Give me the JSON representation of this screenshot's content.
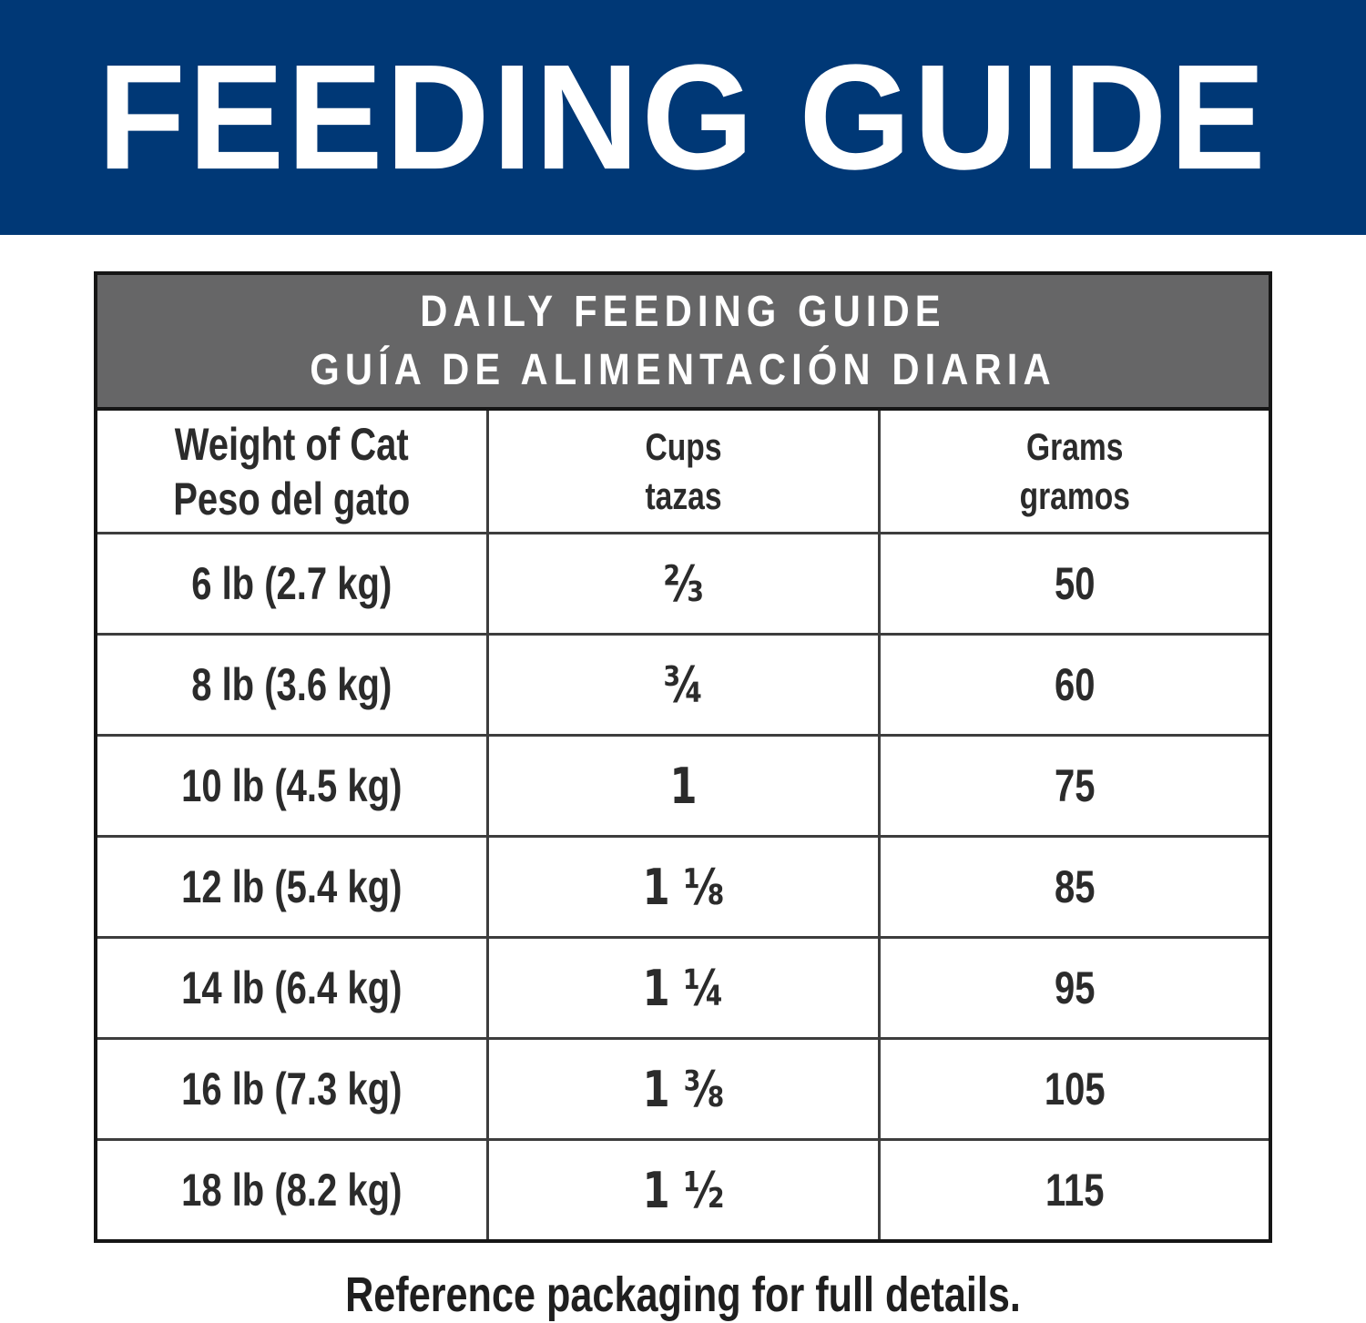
{
  "banner": {
    "title": "FEEDING GUIDE",
    "bg_color": "#003876",
    "text_color": "#ffffff"
  },
  "chart_data": {
    "type": "table",
    "title": "DAILY FEEDING GUIDE",
    "title_es": "GUÍA DE ALIMENTACIÓN DIARIA",
    "header_bg": "#666667",
    "border_color": "#161616",
    "columns": [
      {
        "en": "Weight of Cat",
        "es": "Peso del gato"
      },
      {
        "en": "Cups",
        "es": "tazas"
      },
      {
        "en": "Grams",
        "es": "gramos"
      }
    ],
    "rows": [
      {
        "weight": "6 lb (2.7 kg)",
        "cups": "⅔",
        "grams": "50"
      },
      {
        "weight": "8 lb (3.6 kg)",
        "cups": "¾",
        "grams": "60"
      },
      {
        "weight": "10 lb (4.5 kg)",
        "cups": "1",
        "grams": "75"
      },
      {
        "weight": "12 lb (5.4 kg)",
        "cups": "1 ⅛",
        "grams": "85"
      },
      {
        "weight": "14 lb (6.4 kg)",
        "cups": "1 ¼",
        "grams": "95"
      },
      {
        "weight": "16 lb (7.3 kg)",
        "cups": "1 ⅜",
        "grams": "105"
      },
      {
        "weight": "18 lb (8.2 kg)",
        "cups": "1 ½",
        "grams": "115"
      }
    ],
    "weights_lb": [
      6,
      8,
      10,
      12,
      14,
      16,
      18
    ],
    "weights_kg": [
      2.7,
      3.6,
      4.5,
      5.4,
      6.4,
      7.3,
      8.2
    ],
    "cups_numeric": [
      0.667,
      0.75,
      1,
      1.125,
      1.25,
      1.375,
      1.5
    ],
    "grams_numeric": [
      50,
      60,
      75,
      85,
      95,
      105,
      115
    ]
  },
  "footer": {
    "note": "Reference packaging for full details."
  }
}
